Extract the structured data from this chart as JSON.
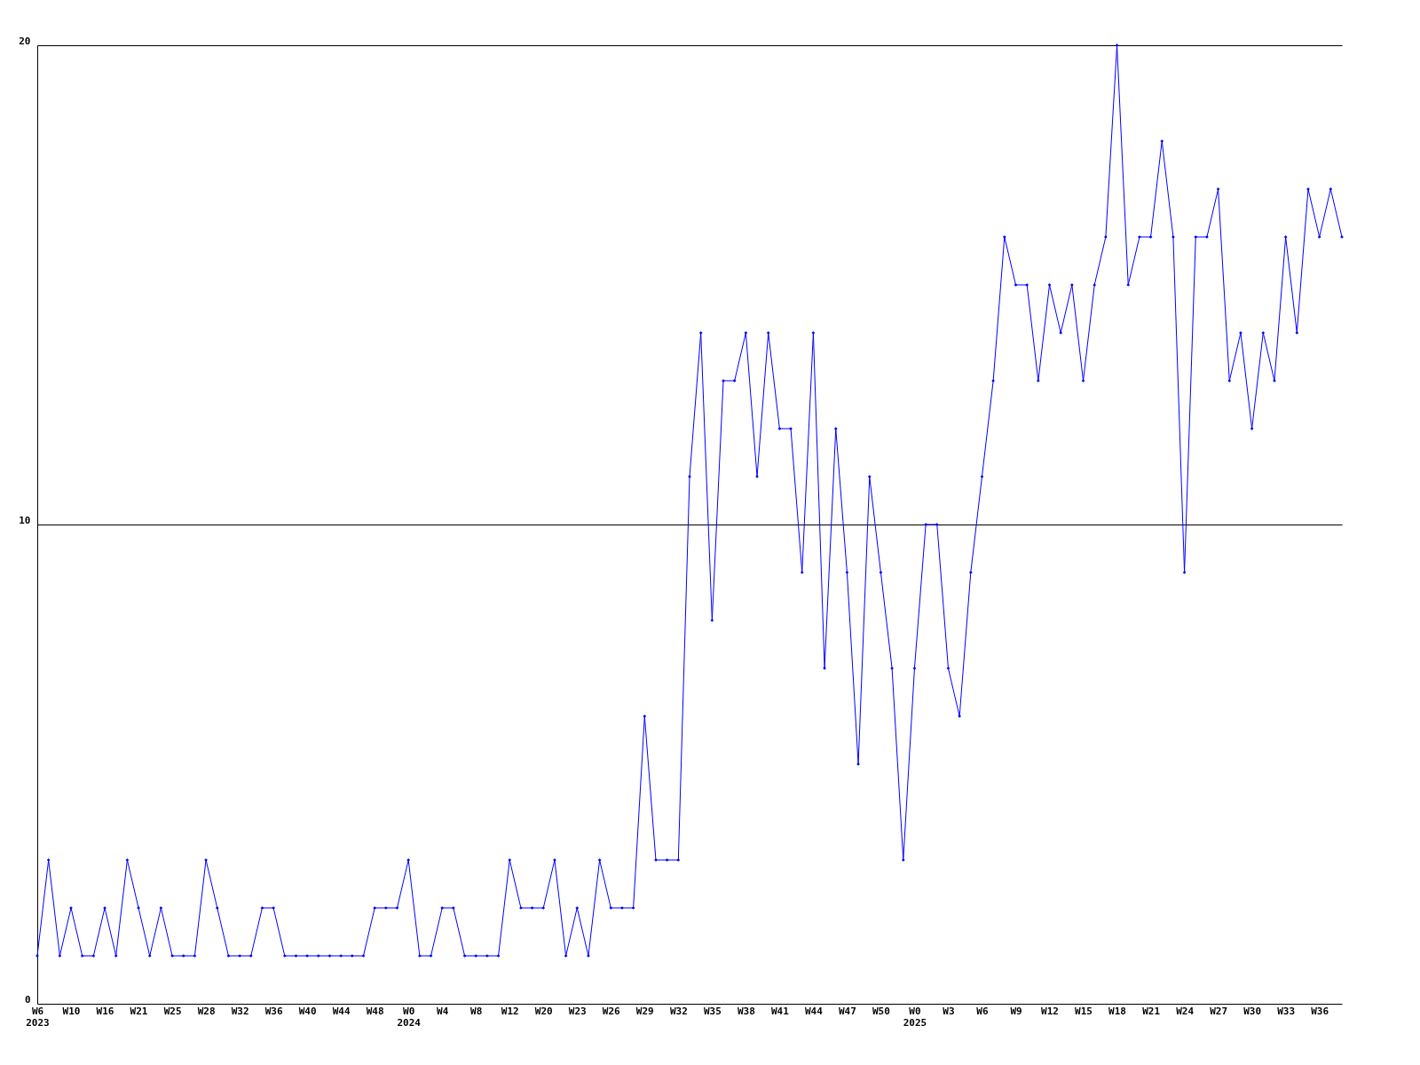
{
  "chart_data": {
    "type": "line",
    "categories": [
      "W6\n2023",
      null,
      null,
      "W10",
      null,
      null,
      "W16",
      null,
      null,
      "W21",
      null,
      null,
      "W25",
      null,
      null,
      "W28",
      null,
      null,
      "W32",
      null,
      null,
      "W36",
      null,
      null,
      "W40",
      null,
      null,
      "W44",
      null,
      null,
      "W48",
      null,
      null,
      "W0\n2024",
      null,
      null,
      "W4",
      null,
      null,
      "W8",
      null,
      null,
      "W12",
      null,
      null,
      "W20",
      null,
      null,
      "W23",
      null,
      null,
      "W26",
      null,
      null,
      "W29",
      null,
      null,
      "W32",
      null,
      null,
      "W35",
      null,
      null,
      "W38",
      null,
      null,
      "W41",
      null,
      null,
      "W44",
      null,
      null,
      "W47",
      null,
      null,
      "W50",
      null,
      null,
      "W0\n2025",
      null,
      null,
      "W3",
      null,
      null,
      "W6",
      null,
      null,
      "W9",
      null,
      null,
      "W12",
      null,
      null,
      "W15",
      null,
      null,
      "W18",
      null,
      null,
      "W21",
      null,
      null,
      "W24",
      null,
      null,
      "W27",
      null,
      null,
      "W30",
      null,
      null,
      "W33",
      null,
      null,
      "W36",
      null,
      null
    ],
    "series": [
      {
        "color": "#0000ff",
        "values": [
          1,
          3,
          1,
          2,
          1,
          1,
          2,
          1,
          3,
          2,
          1,
          2,
          1,
          1,
          1,
          3,
          2,
          1,
          1,
          1,
          2,
          2,
          1,
          1,
          1,
          1,
          1,
          1,
          1,
          1,
          2,
          2,
          2,
          3,
          1,
          1,
          2,
          2,
          1,
          1,
          1,
          1,
          3,
          2,
          2,
          2,
          3,
          1,
          2,
          1,
          3,
          2,
          2,
          2,
          6,
          3,
          3,
          3,
          11,
          14,
          8,
          13,
          13,
          14,
          11,
          14,
          12,
          12,
          9,
          14,
          7,
          12,
          9,
          5,
          11,
          9,
          7,
          3,
          7,
          10,
          10,
          7,
          6,
          9,
          11,
          13,
          16,
          15,
          15,
          13,
          15,
          14,
          15,
          13,
          15,
          16,
          20,
          15,
          16,
          16,
          18,
          16,
          9,
          16,
          16,
          17,
          13,
          14,
          12,
          14,
          13,
          16,
          14,
          17,
          16,
          17,
          16
        ]
      }
    ],
    "ylim": [
      0,
      20
    ],
    "yticks": [
      0,
      10,
      20
    ],
    "grid": "y",
    "marker": "diamond",
    "line_style": "solid",
    "legend": false
  }
}
